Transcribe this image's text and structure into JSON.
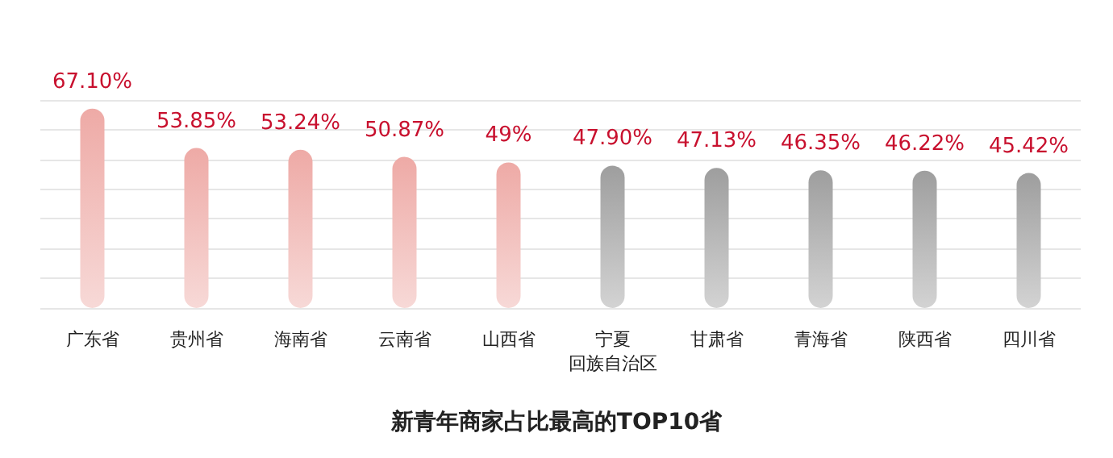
{
  "chart_data": {
    "type": "bar",
    "title": "新青年商家占比最高的TOP10省",
    "categories": [
      "广东省",
      "贵州省",
      "海南省",
      "云南省",
      "山西省",
      "宁夏回族自治区",
      "甘肃省",
      "青海省",
      "陕西省",
      "四川省"
    ],
    "values": [
      67.1,
      53.85,
      53.24,
      50.87,
      49,
      47.9,
      47.13,
      46.35,
      46.22,
      45.42
    ],
    "value_labels": [
      "67.10%",
      "53.85%",
      "53.24%",
      "50.87%",
      "49%",
      "47.90%",
      "47.13%",
      "46.35%",
      "46.22%",
      "45.42%"
    ],
    "colors": [
      "#eeaaa6",
      "#eeaaa6",
      "#eeaaa6",
      "#eeaaa6",
      "#eeaaa6",
      "#9e9e9e",
      "#9e9e9e",
      "#9e9e9e",
      "#9e9e9e",
      "#9e9e9e"
    ],
    "grid": "y",
    "tick_labels": "x"
  }
}
